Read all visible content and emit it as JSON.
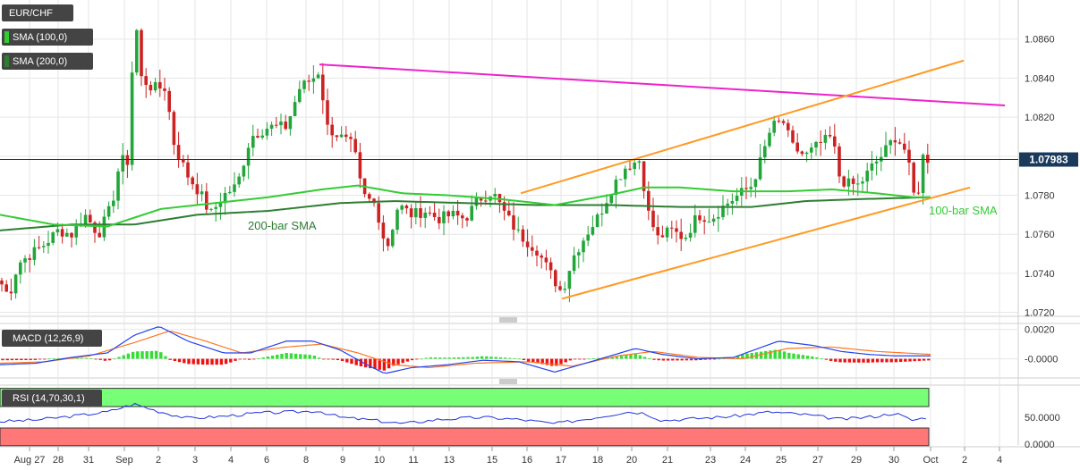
{
  "colors": {
    "up": "#22a63a",
    "down": "#cc2222",
    "sma100": "#33cc33",
    "sma200": "#2e7d32",
    "resistance": "#ee22cc",
    "channel": "#ff9922",
    "macd": "#2244ee",
    "signal": "#ff7722",
    "hist_up": "#33dd33",
    "hist_down": "#ee1111",
    "rsi_line": "#2233dd",
    "rsi_upper_zone": "#77ff77",
    "rsi_lower_zone": "#ff7777",
    "current_price_bg": "#1a3a5c",
    "grid": "#e6e6e6"
  },
  "chart_data": [
    {
      "type": "candlestick",
      "symbol": "EUR/CHF",
      "x_labels": [
        "Aug 27",
        "28",
        "31",
        "Sep",
        "2",
        "3",
        "4",
        "6",
        "8",
        "9",
        "10",
        "11",
        "13",
        "15",
        "16",
        "17",
        "18",
        "20",
        "21",
        "23",
        "24",
        "25",
        "27",
        "29",
        "30",
        "Oct",
        "2",
        "4"
      ],
      "y_ticks": [
        "1.0720",
        "1.0740",
        "1.0760",
        "1.0780",
        "1.0800",
        "1.0820",
        "1.0840",
        "1.0860"
      ],
      "ylim": [
        1.0718,
        1.088
      ],
      "current_price": "1.07983",
      "current_price_value": 1.07983,
      "legend": [
        "EUR/CHF",
        "SMA (100,0)",
        "SMA (200,0)"
      ],
      "annotations": [
        "200-bar SMA",
        "100-bar SMA"
      ],
      "path_keys": [
        [
          0,
          1.0736
        ],
        [
          10,
          1.0728
        ],
        [
          20,
          1.0745
        ],
        [
          35,
          1.075
        ],
        [
          50,
          1.0755
        ],
        [
          65,
          1.0762
        ],
        [
          80,
          1.076
        ],
        [
          95,
          1.077
        ],
        [
          110,
          1.076
        ],
        [
          125,
          1.0775
        ],
        [
          135,
          1.08
        ],
        [
          140,
          1.0795
        ],
        [
          145,
          1.08
        ],
        [
          148,
          1.085
        ],
        [
          152,
          1.0868
        ],
        [
          158,
          1.084
        ],
        [
          170,
          1.0835
        ],
        [
          185,
          1.0835
        ],
        [
          195,
          1.0805
        ],
        [
          210,
          1.079
        ],
        [
          225,
          1.078
        ],
        [
          235,
          1.077
        ],
        [
          250,
          1.078
        ],
        [
          265,
          1.0785
        ],
        [
          280,
          1.081
        ],
        [
          300,
          1.0815
        ],
        [
          320,
          1.0815
        ],
        [
          335,
          1.0835
        ],
        [
          350,
          1.084
        ],
        [
          357,
          1.0844
        ],
        [
          365,
          1.0815
        ],
        [
          380,
          1.081
        ],
        [
          395,
          1.0805
        ],
        [
          405,
          1.078
        ],
        [
          420,
          1.0775
        ],
        [
          432,
          1.0752
        ],
        [
          445,
          1.0775
        ],
        [
          460,
          1.077
        ],
        [
          475,
          1.0772
        ],
        [
          490,
          1.0768
        ],
        [
          505,
          1.077
        ],
        [
          520,
          1.0768
        ],
        [
          535,
          1.0778
        ],
        [
          550,
          1.0782
        ],
        [
          565,
          1.077
        ],
        [
          580,
          1.076
        ],
        [
          600,
          1.0752
        ],
        [
          615,
          1.074
        ],
        [
          628,
          1.073
        ],
        [
          640,
          1.0748
        ],
        [
          655,
          1.076
        ],
        [
          670,
          1.077
        ],
        [
          685,
          1.0785
        ],
        [
          700,
          1.0795
        ],
        [
          715,
          1.0798
        ],
        [
          725,
          1.077
        ],
        [
          735,
          1.0758
        ],
        [
          750,
          1.0762
        ],
        [
          765,
          1.0758
        ],
        [
          780,
          1.077
        ],
        [
          795,
          1.0768
        ],
        [
          810,
          1.0775
        ],
        [
          825,
          1.078
        ],
        [
          840,
          1.0785
        ],
        [
          852,
          1.08
        ],
        [
          862,
          1.0815
        ],
        [
          875,
          1.0818
        ],
        [
          885,
          1.0805
        ],
        [
          900,
          1.08
        ],
        [
          915,
          1.0806
        ],
        [
          930,
          1.081
        ],
        [
          938,
          1.079
        ],
        [
          945,
          1.0786
        ],
        [
          960,
          1.0785
        ],
        [
          975,
          1.0795
        ],
        [
          985,
          1.08
        ],
        [
          1000,
          1.081
        ],
        [
          1010,
          1.0805
        ],
        [
          1018,
          1.079
        ],
        [
          1024,
          1.0772
        ],
        [
          1030,
          1.08
        ],
        [
          1040,
          1.0798
        ]
      ],
      "sma100_keys": [
        [
          0,
          1.077
        ],
        [
          60,
          1.0765
        ],
        [
          120,
          1.0764
        ],
        [
          180,
          1.0773
        ],
        [
          240,
          1.0776
        ],
        [
          300,
          1.0779
        ],
        [
          360,
          1.0783
        ],
        [
          400,
          1.0785
        ],
        [
          450,
          1.0781
        ],
        [
          500,
          1.078
        ],
        [
          560,
          1.0778
        ],
        [
          620,
          1.0775
        ],
        [
          680,
          1.078
        ],
        [
          720,
          1.0784
        ],
        [
          760,
          1.0784
        ],
        [
          820,
          1.0782
        ],
        [
          880,
          1.0782
        ],
        [
          930,
          1.0783
        ],
        [
          980,
          1.0781
        ],
        [
          1020,
          1.0779
        ],
        [
          1040,
          1.0779
        ]
      ],
      "sma200_keys": [
        [
          0,
          1.0762
        ],
        [
          80,
          1.0765
        ],
        [
          150,
          1.0765
        ],
        [
          220,
          1.077
        ],
        [
          300,
          1.0772
        ],
        [
          380,
          1.0776
        ],
        [
          440,
          1.0777
        ],
        [
          520,
          1.0776
        ],
        [
          600,
          1.0775
        ],
        [
          680,
          1.0775
        ],
        [
          760,
          1.0774
        ],
        [
          840,
          1.0774
        ],
        [
          900,
          1.0777
        ],
        [
          960,
          1.0778
        ],
        [
          1040,
          1.0779
        ]
      ],
      "resistance_line": [
        [
          357,
          1.0847
        ],
        [
          1123,
          1.0826
        ]
      ],
      "channel_upper": [
        [
          582,
          1.0781
        ],
        [
          1077,
          1.0849
        ]
      ],
      "channel_lower": [
        [
          628,
          1.0727
        ],
        [
          1084,
          1.0784
        ]
      ]
    },
    {
      "type": "line",
      "name": "MACD (12,26,9)",
      "y_ticks": [
        "0.0020",
        "-0.0000"
      ],
      "ylim": [
        -0.0013,
        0.0024
      ],
      "macd_keys": [
        [
          0,
          -0.0004
        ],
        [
          40,
          -0.0003
        ],
        [
          80,
          0.0001
        ],
        [
          120,
          0.0004
        ],
        [
          150,
          0.0016
        ],
        [
          178,
          0.0022
        ],
        [
          210,
          0.0012
        ],
        [
          250,
          0.0004
        ],
        [
          280,
          0.0004
        ],
        [
          320,
          0.0012
        ],
        [
          350,
          0.0012
        ],
        [
          380,
          0.0006
        ],
        [
          410,
          -0.0004
        ],
        [
          430,
          -0.001
        ],
        [
          460,
          -0.0006
        ],
        [
          500,
          -0.0004
        ],
        [
          540,
          -0.0001
        ],
        [
          580,
          -0.0002
        ],
        [
          620,
          -0.0009
        ],
        [
          660,
          -0.0002
        ],
        [
          710,
          0.0007
        ],
        [
          740,
          0.0003
        ],
        [
          780,
          0.0
        ],
        [
          820,
          0.0001
        ],
        [
          870,
          0.0012
        ],
        [
          910,
          0.0009
        ],
        [
          940,
          0.0005
        ],
        [
          970,
          0.0003
        ],
        [
          1000,
          0.0002
        ],
        [
          1040,
          0.0002
        ]
      ],
      "signal_keys": [
        [
          0,
          -0.0003
        ],
        [
          50,
          -0.0002
        ],
        [
          100,
          0.0002
        ],
        [
          150,
          0.0011
        ],
        [
          190,
          0.0019
        ],
        [
          230,
          0.0012
        ],
        [
          270,
          0.0004
        ],
        [
          320,
          0.0008
        ],
        [
          360,
          0.001
        ],
        [
          400,
          0.0004
        ],
        [
          440,
          -0.0004
        ],
        [
          480,
          -0.0006
        ],
        [
          530,
          -0.0003
        ],
        [
          590,
          -0.0002
        ],
        [
          640,
          -0.0005
        ],
        [
          690,
          0.0002
        ],
        [
          730,
          0.0005
        ],
        [
          780,
          0.0001
        ],
        [
          830,
          0.0
        ],
        [
          880,
          0.0007
        ],
        [
          930,
          0.0008
        ],
        [
          980,
          0.0005
        ],
        [
          1040,
          0.0003
        ]
      ]
    },
    {
      "type": "line",
      "name": "RSI (14,70,30,1)",
      "y_ticks": [
        "50.0000",
        "0.0000"
      ],
      "ylim": [
        -5,
        110
      ],
      "upper_level": 70,
      "lower_level": 30,
      "rsi_keys": [
        [
          0,
          42
        ],
        [
          40,
          45
        ],
        [
          80,
          52
        ],
        [
          120,
          60
        ],
        [
          150,
          75
        ],
        [
          175,
          62
        ],
        [
          210,
          48
        ],
        [
          250,
          52
        ],
        [
          290,
          58
        ],
        [
          330,
          60
        ],
        [
          356,
          62
        ],
        [
          380,
          50
        ],
        [
          420,
          44
        ],
        [
          450,
          38
        ],
        [
          490,
          46
        ],
        [
          540,
          50
        ],
        [
          580,
          46
        ],
        [
          620,
          38
        ],
        [
          660,
          48
        ],
        [
          700,
          60
        ],
        [
          720,
          58
        ],
        [
          740,
          44
        ],
        [
          780,
          48
        ],
        [
          820,
          52
        ],
        [
          860,
          60
        ],
        [
          900,
          55
        ],
        [
          940,
          46
        ],
        [
          980,
          52
        ],
        [
          1000,
          58
        ],
        [
          1020,
          44
        ],
        [
          1040,
          52
        ]
      ]
    }
  ]
}
